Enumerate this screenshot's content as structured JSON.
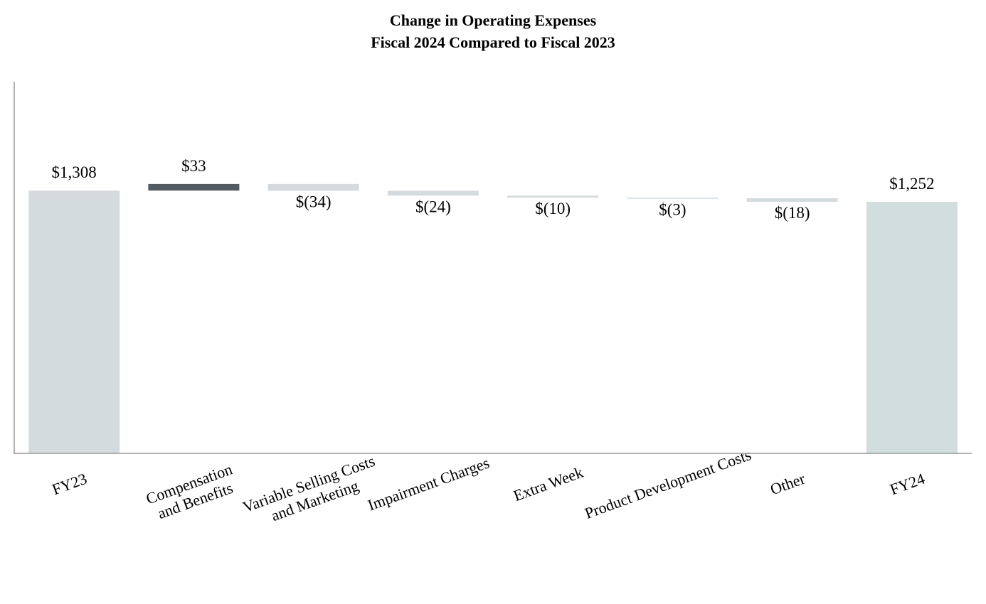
{
  "chart_data": {
    "type": "waterfall",
    "title_lines": [
      "Change in Operating Expenses",
      "Fiscal 2024 Compared to Fiscal 2023"
    ],
    "categories": [
      [
        "FY23"
      ],
      [
        "Compensation",
        "and Benefits"
      ],
      [
        "Variable Selling Costs",
        "and Marketing"
      ],
      [
        "Impairment Charges"
      ],
      [
        "Extra Week"
      ],
      [
        "Product Development Costs"
      ],
      [
        "Other"
      ],
      [
        "FY24"
      ]
    ],
    "values": [
      1308,
      33,
      -34,
      -24,
      -10,
      -3,
      -18,
      1252
    ],
    "kinds": [
      "total",
      "delta",
      "delta",
      "delta",
      "delta",
      "delta",
      "delta",
      "total"
    ],
    "data_labels": [
      "$1,308",
      "$33",
      "$(34)",
      "$(24)",
      "$(10)",
      "$(3)",
      "$(18)",
      "$1,252"
    ],
    "xlabel": "",
    "ylabel": "",
    "ylim": [
      0,
      1850
    ],
    "grid": false,
    "legend": "none",
    "colors": {
      "total_start": "#d4dbdf",
      "total_end": "#d2dedd",
      "increase": "#525a62",
      "decrease": "#d4dbdf",
      "axis": "#999999"
    }
  }
}
